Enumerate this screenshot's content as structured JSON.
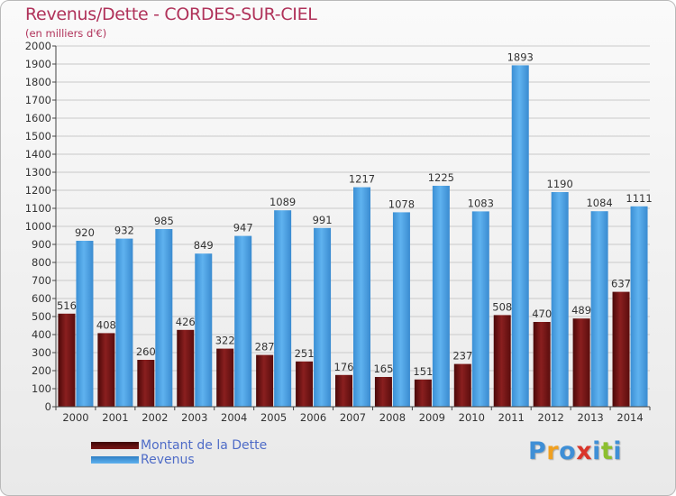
{
  "header": {
    "title": "Revenus/Dette - CORDES-SUR-CIEL",
    "subtitle": "(en milliers d'€)"
  },
  "legend": {
    "items": [
      {
        "label": "Montant de la Dette",
        "color": "#7a1717"
      },
      {
        "label": "Revenus",
        "color": "#4da3e3"
      }
    ]
  },
  "logo": {
    "text": "Proxiti",
    "letter_colors": [
      "#3f8fd6",
      "#f0a020",
      "#3f8fd6",
      "#d9352b",
      "#3f8fd6",
      "#8cbf2f",
      "#3f8fd6"
    ]
  },
  "chart_data": {
    "type": "bar",
    "categories": [
      "2000",
      "2001",
      "2002",
      "2003",
      "2004",
      "2005",
      "2006",
      "2007",
      "2008",
      "2009",
      "2010",
      "2011",
      "2012",
      "2013",
      "2014"
    ],
    "series": [
      {
        "name": "Montant de la Dette",
        "color": "#7a1717",
        "values": [
          516,
          408,
          260,
          426,
          322,
          287,
          251,
          176,
          165,
          151,
          237,
          508,
          470,
          489,
          637
        ]
      },
      {
        "name": "Revenus",
        "color": "#4da3e3",
        "values": [
          920,
          932,
          985,
          849,
          947,
          1089,
          991,
          1217,
          1078,
          1225,
          1083,
          1893,
          1190,
          1084,
          1111
        ]
      }
    ],
    "title": "Revenus/Dette - CORDES-SUR-CIEL",
    "ylabel": "(en milliers d'€)",
    "ylim": [
      0,
      2000
    ],
    "ytick_step": 100,
    "grid": true
  }
}
